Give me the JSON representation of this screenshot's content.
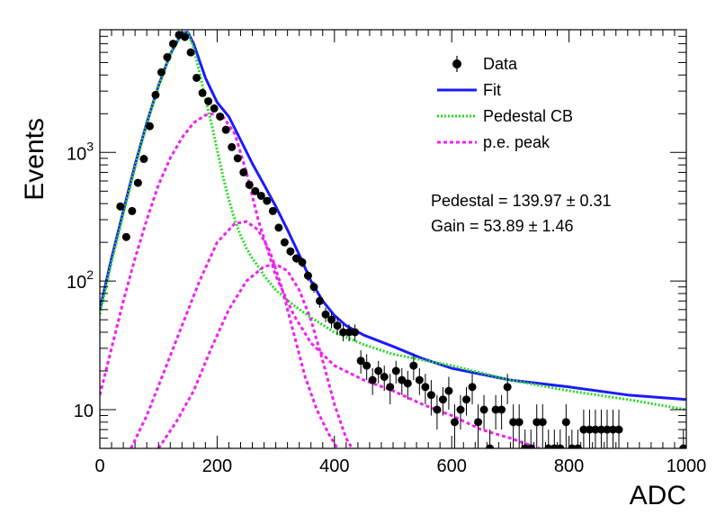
{
  "chart_data": {
    "type": "scatter",
    "xlabel": "ADC",
    "ylabel": "Events",
    "xlim": [
      0,
      1000
    ],
    "ylim": [
      5,
      9000
    ],
    "y_scale": "log",
    "grid": false,
    "legend_placement": "top-right",
    "x_ticks": [
      {
        "value": 0,
        "label": "0"
      },
      {
        "value": 200,
        "label": "200"
      },
      {
        "value": 400,
        "label": "400"
      },
      {
        "value": 600,
        "label": "600"
      },
      {
        "value": 800,
        "label": "800"
      },
      {
        "value": 1000,
        "label": "1000"
      }
    ],
    "y_ticks": [
      {
        "value": 10,
        "base": "10",
        "exp": ""
      },
      {
        "value": 100,
        "base": "10",
        "exp": "2"
      },
      {
        "value": 1000,
        "base": "10",
        "exp": "3"
      }
    ],
    "legend": [
      {
        "label": "Data",
        "style": "marker",
        "color": "#000000"
      },
      {
        "label": "Fit",
        "style": "solid",
        "color": "#1a1aff"
      },
      {
        "label": "Pedestal CB",
        "style": "dotted",
        "color": "#22dd22"
      },
      {
        "label": "p.e. peak",
        "style": "dashed",
        "color": "#ee22ee"
      }
    ],
    "annotations": [
      {
        "label": "Pedestal = 139.97",
        "pm": "±",
        "value": "0.31"
      },
      {
        "label": "Gain = 53.89",
        "pm": "±",
        "value": "1.46"
      }
    ],
    "data_points": {
      "x": [
        35,
        45,
        55,
        65,
        75,
        85,
        95,
        105,
        115,
        125,
        135,
        145,
        155,
        165,
        175,
        185,
        195,
        205,
        215,
        225,
        235,
        245,
        255,
        265,
        275,
        285,
        295,
        305,
        315,
        325,
        335,
        345,
        355,
        365,
        375,
        385,
        395,
        405,
        415,
        425,
        435,
        445,
        455,
        465,
        475,
        485,
        495,
        505,
        515,
        525,
        535,
        545,
        555,
        565,
        575,
        585,
        595,
        605,
        615,
        625,
        635,
        645,
        655,
        665,
        675,
        685,
        695,
        705,
        715,
        725,
        735,
        745,
        755,
        765,
        775,
        785,
        795,
        805,
        815,
        825,
        835,
        845,
        855,
        865,
        875,
        885,
        995
      ],
      "y": [
        380,
        220,
        350,
        580,
        890,
        1600,
        2800,
        4200,
        5500,
        7000,
        8200,
        7900,
        6000,
        3800,
        2900,
        2500,
        2200,
        1900,
        1500,
        1100,
        900,
        700,
        560,
        500,
        460,
        420,
        350,
        260,
        200,
        170,
        150,
        140,
        110,
        90,
        70,
        55,
        50,
        45,
        40,
        40,
        40,
        24,
        22,
        17,
        20,
        18,
        15,
        20,
        17,
        16,
        22,
        17,
        15,
        13,
        10,
        12,
        14,
        8,
        10,
        12,
        15,
        8,
        10,
        5,
        10,
        10,
        15,
        8,
        8,
        5,
        5,
        8,
        8,
        5,
        5,
        5,
        8,
        5,
        5,
        7,
        7,
        7,
        7,
        7,
        7,
        7,
        5
      ],
      "yerr": [
        20,
        15,
        19,
        24,
        30,
        40,
        53,
        65,
        74,
        84,
        91,
        89,
        77,
        62,
        54,
        50,
        47,
        44,
        39,
        33,
        30,
        26,
        24,
        22,
        21,
        20,
        19,
        16,
        14,
        13,
        12,
        12,
        10,
        9,
        8,
        7,
        7,
        7,
        6,
        6,
        6,
        5,
        5,
        4,
        4,
        4,
        4,
        4,
        4,
        4,
        5,
        4,
        4,
        4,
        3,
        3,
        4,
        3,
        3,
        3,
        4,
        3,
        3,
        2,
        3,
        3,
        4,
        3,
        3,
        2,
        2,
        3,
        3,
        2,
        2,
        2,
        3,
        2,
        2,
        3,
        3,
        3,
        3,
        3,
        3,
        3,
        2
      ]
    },
    "series": [
      {
        "name": "Fit",
        "color": "#1a1aff",
        "style": "solid",
        "x": [
          0,
          20,
          40,
          60,
          80,
          100,
          120,
          140,
          150,
          160,
          180,
          200,
          220,
          240,
          260,
          280,
          300,
          320,
          340,
          360,
          380,
          400,
          420,
          450,
          500,
          550,
          600,
          700,
          800,
          900,
          1000
        ],
        "y": [
          60,
          150,
          350,
          800,
          1700,
          3300,
          5800,
          8500,
          8600,
          7000,
          3800,
          2450,
          1900,
          1250,
          820,
          560,
          380,
          250,
          160,
          100,
          70,
          54,
          45,
          38,
          31,
          25,
          21,
          17,
          15,
          13,
          12
        ]
      },
      {
        "name": "Pedestal CB",
        "color": "#22dd22",
        "style": "dotted",
        "x": [
          0,
          20,
          40,
          60,
          80,
          100,
          120,
          140,
          150,
          160,
          170,
          180,
          190,
          200,
          210,
          220,
          230,
          240,
          250,
          260,
          270,
          280,
          300,
          330,
          360,
          400,
          450,
          500,
          600,
          700,
          800,
          900,
          1000
        ],
        "y": [
          55,
          140,
          330,
          760,
          1650,
          3250,
          5700,
          8400,
          8500,
          6500,
          4200,
          2600,
          1700,
          1050,
          650,
          430,
          300,
          225,
          180,
          150,
          130,
          110,
          85,
          65,
          52,
          40,
          32,
          27,
          22,
          17,
          14,
          12,
          10
        ]
      },
      {
        "name": "p.e. peak 1",
        "color": "#ee22ee",
        "style": "dashed",
        "x": [
          0,
          20,
          40,
          60,
          80,
          100,
          120,
          140,
          160,
          180,
          195,
          210,
          230,
          250,
          270,
          300,
          330,
          360,
          400,
          450,
          500,
          550,
          600,
          650,
          700,
          750
        ],
        "y": [
          13,
          30,
          70,
          150,
          300,
          560,
          900,
          1300,
          1700,
          1950,
          2000,
          1900,
          1400,
          700,
          300,
          110,
          55,
          33,
          22,
          17,
          14,
          11,
          9,
          7,
          6,
          5
        ]
      },
      {
        "name": "p.e. peak 2",
        "color": "#ee22ee",
        "style": "dashed",
        "x": [
          53,
          80,
          110,
          140,
          170,
          200,
          230,
          250,
          270,
          290,
          310,
          330,
          350,
          370,
          390,
          405
        ],
        "y": [
          5,
          9,
          20,
          45,
          100,
          200,
          280,
          290,
          250,
          170,
          90,
          40,
          18,
          10,
          6.5,
          5
        ]
      },
      {
        "name": "p.e. peak 3",
        "color": "#ee22ee",
        "style": "dashed",
        "x": [
          100,
          130,
          160,
          190,
          220,
          250,
          280,
          300,
          320,
          340,
          360,
          380,
          400,
          420,
          430
        ],
        "y": [
          5,
          8,
          14,
          30,
          60,
          100,
          130,
          135,
          120,
          85,
          50,
          24,
          11,
          6,
          5
        ]
      }
    ]
  }
}
